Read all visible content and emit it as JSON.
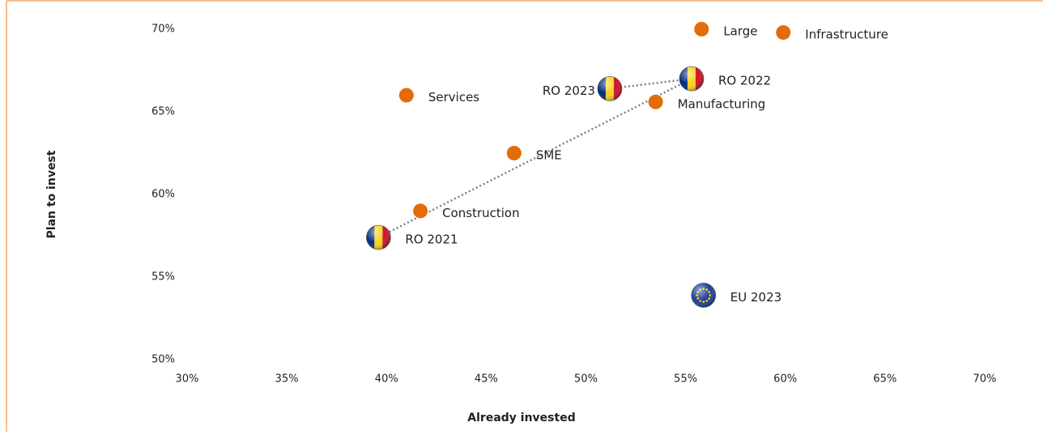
{
  "chart_data": {
    "type": "scatter",
    "xlabel": "Already invested",
    "ylabel": "Plan to invest",
    "xlim": [
      30,
      70
    ],
    "ylim": [
      50,
      70
    ],
    "xticks": [
      {
        "value": 30,
        "label": "30%"
      },
      {
        "value": 35,
        "label": "35%"
      },
      {
        "value": 40,
        "label": "40%"
      },
      {
        "value": 45,
        "label": "45%"
      },
      {
        "value": 50,
        "label": "50%"
      },
      {
        "value": 55,
        "label": "55%"
      },
      {
        "value": 60,
        "label": "60%"
      },
      {
        "value": 65,
        "label": "65%"
      },
      {
        "value": 70,
        "label": "70%"
      }
    ],
    "yticks": [
      {
        "value": 50,
        "label": "50%"
      },
      {
        "value": 55,
        "label": "55%"
      },
      {
        "value": 60,
        "label": "60%"
      },
      {
        "value": 65,
        "label": "65%"
      },
      {
        "value": 70,
        "label": "70%"
      }
    ],
    "grid": false,
    "series": [
      {
        "color": "#e36c0a",
        "marker": "dot",
        "labels": [
          "Large",
          "Infrastructure",
          "Services",
          "Manufacturing",
          "SME",
          "Construction"
        ],
        "x": [
          55.8,
          59.9,
          41.0,
          53.5,
          46.4,
          41.7
        ],
        "values": [
          70.0,
          69.8,
          66.0,
          65.6,
          62.5,
          59.0
        ]
      },
      {
        "marker": "ro-flag",
        "connected": true,
        "labels": [
          "RO 2021",
          "RO 2022",
          "RO 2023"
        ],
        "x": [
          39.6,
          55.3,
          51.2
        ],
        "values": [
          57.4,
          67.0,
          66.4
        ]
      },
      {
        "marker": "eu-flag",
        "labels": [
          "EU 2023"
        ],
        "x": [
          55.9
        ],
        "values": [
          53.9
        ]
      }
    ]
  }
}
